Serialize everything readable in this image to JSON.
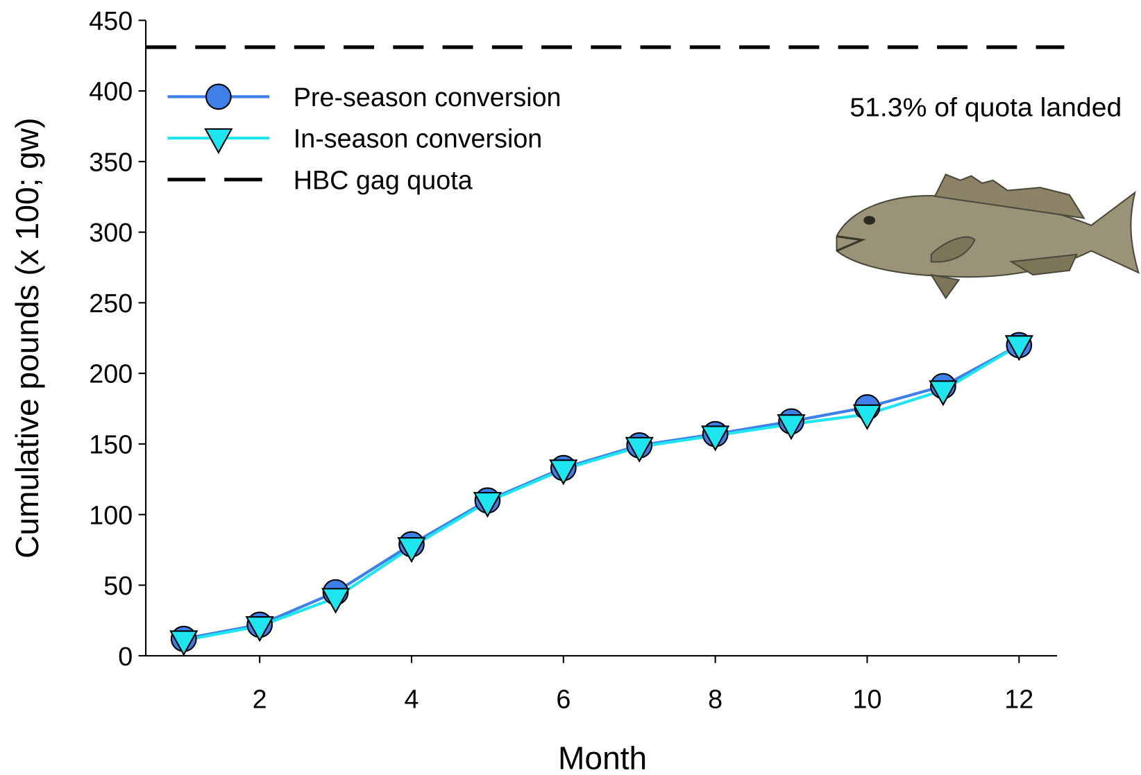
{
  "chart_data": {
    "type": "line",
    "x_label": "Month",
    "y_label": "Cumulative pounds (x 100; gw)",
    "annotation": "51.3% of quota landed",
    "x": [
      1,
      2,
      3,
      4,
      5,
      6,
      7,
      8,
      9,
      10,
      11,
      12
    ],
    "series": [
      {
        "name": "Pre-season conversion",
        "color": "#3f7fe8",
        "marker": "circle",
        "values": [
          12,
          22,
          45,
          79,
          110,
          133,
          149,
          157,
          166,
          176,
          191,
          220
        ]
      },
      {
        "name": "In-season conversion",
        "color": "#1ee6f0",
        "marker": "triangle-down",
        "values": [
          11,
          21,
          41,
          77,
          109,
          132,
          148,
          156,
          164,
          171,
          188,
          220
        ]
      }
    ],
    "reference_lines": [
      {
        "name": "HBC gag quota",
        "value": 431,
        "color": "#000000"
      }
    ],
    "xlim": [
      0.5,
      12.5
    ],
    "xticks": [
      2,
      4,
      6,
      8,
      10,
      12
    ],
    "ylim": [
      0,
      450
    ],
    "yticks": [
      0,
      50,
      100,
      150,
      200,
      250,
      300,
      350,
      400,
      450
    ]
  }
}
